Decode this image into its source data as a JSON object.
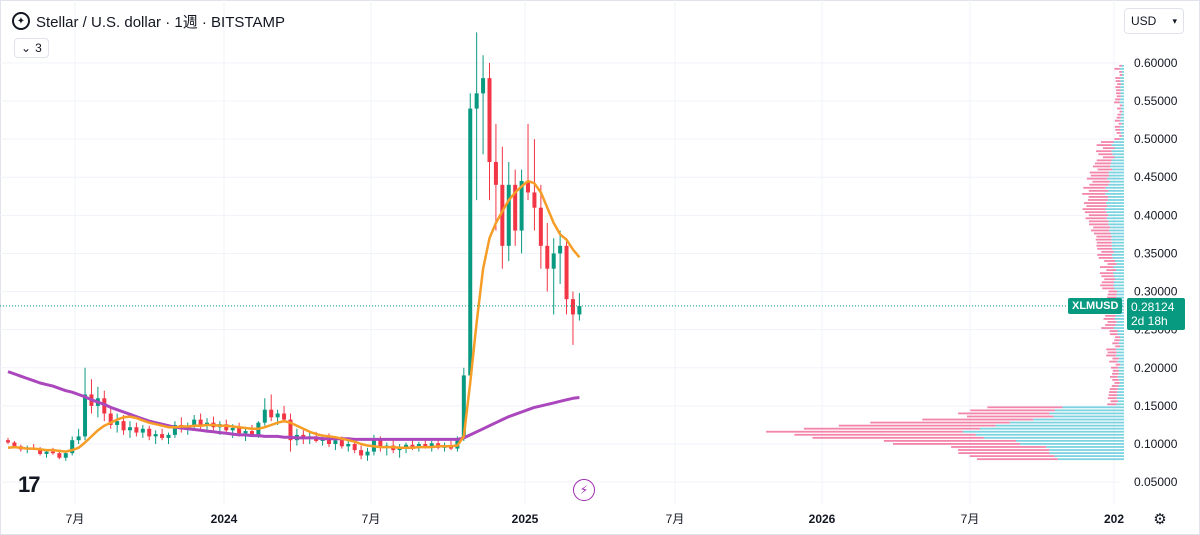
{
  "header": {
    "title": "Stellar / U.S. dollar · 1週 · BITSTAMP",
    "collapse_count": "3"
  },
  "currency": "USD",
  "price_tag": {
    "symbol": "XLMUSD",
    "price": "0.28124",
    "countdown": "2d 18h"
  },
  "colors": {
    "up": "#089981",
    "down": "#f23645",
    "ma_fast": "#f59d26",
    "ma_slow": "#ab47bc",
    "volume_profile_up": "#5ac8d8",
    "volume_profile_down": "#ef5b8e"
  },
  "chart_data": {
    "type": "candlestick",
    "y_axis": {
      "min": 0.02,
      "max": 0.63,
      "ticks": [
        "0.60000",
        "0.55000",
        "0.50000",
        "0.45000",
        "0.40000",
        "0.35000",
        "0.30000",
        "0.25000",
        "0.20000",
        "0.15000",
        "0.10000",
        "0.05000"
      ]
    },
    "x_axis": {
      "labels": [
        "7月",
        "2024",
        "7月",
        "2025",
        "7月",
        "2026",
        "7月",
        "202"
      ]
    },
    "last_price": 0.28124,
    "candles": [
      [
        0.105,
        0.108,
        0.1,
        0.102
      ],
      [
        0.102,
        0.104,
        0.095,
        0.097
      ],
      [
        0.097,
        0.099,
        0.09,
        0.093
      ],
      [
        0.093,
        0.098,
        0.088,
        0.095
      ],
      [
        0.095,
        0.1,
        0.092,
        0.093
      ],
      [
        0.093,
        0.096,
        0.085,
        0.087
      ],
      [
        0.087,
        0.092,
        0.082,
        0.09
      ],
      [
        0.09,
        0.095,
        0.086,
        0.088
      ],
      [
        0.088,
        0.092,
        0.08,
        0.082
      ],
      [
        0.082,
        0.09,
        0.078,
        0.088
      ],
      [
        0.088,
        0.11,
        0.085,
        0.105
      ],
      [
        0.105,
        0.12,
        0.1,
        0.11
      ],
      [
        0.11,
        0.2,
        0.105,
        0.165
      ],
      [
        0.165,
        0.185,
        0.14,
        0.15
      ],
      [
        0.15,
        0.175,
        0.135,
        0.16
      ],
      [
        0.16,
        0.17,
        0.13,
        0.14
      ],
      [
        0.14,
        0.15,
        0.12,
        0.125
      ],
      [
        0.125,
        0.14,
        0.115,
        0.13
      ],
      [
        0.13,
        0.138,
        0.112,
        0.118
      ],
      [
        0.118,
        0.13,
        0.108,
        0.122
      ],
      [
        0.122,
        0.128,
        0.11,
        0.115
      ],
      [
        0.115,
        0.125,
        0.108,
        0.12
      ],
      [
        0.12,
        0.124,
        0.105,
        0.11
      ],
      [
        0.11,
        0.118,
        0.1,
        0.113
      ],
      [
        0.113,
        0.12,
        0.105,
        0.108
      ],
      [
        0.108,
        0.115,
        0.1,
        0.112
      ],
      [
        0.112,
        0.13,
        0.108,
        0.125
      ],
      [
        0.125,
        0.135,
        0.115,
        0.12
      ],
      [
        0.12,
        0.128,
        0.112,
        0.124
      ],
      [
        0.124,
        0.138,
        0.118,
        0.132
      ],
      [
        0.132,
        0.14,
        0.12,
        0.125
      ],
      [
        0.125,
        0.134,
        0.115,
        0.128
      ],
      [
        0.128,
        0.136,
        0.118,
        0.122
      ],
      [
        0.122,
        0.13,
        0.112,
        0.126
      ],
      [
        0.126,
        0.132,
        0.114,
        0.118
      ],
      [
        0.118,
        0.126,
        0.108,
        0.121
      ],
      [
        0.121,
        0.128,
        0.11,
        0.114
      ],
      [
        0.114,
        0.12,
        0.104,
        0.117
      ],
      [
        0.117,
        0.125,
        0.11,
        0.112
      ],
      [
        0.112,
        0.13,
        0.108,
        0.128
      ],
      [
        0.128,
        0.16,
        0.124,
        0.145
      ],
      [
        0.145,
        0.165,
        0.13,
        0.135
      ],
      [
        0.135,
        0.145,
        0.125,
        0.14
      ],
      [
        0.14,
        0.15,
        0.128,
        0.132
      ],
      [
        0.132,
        0.14,
        0.09,
        0.105
      ],
      [
        0.105,
        0.12,
        0.098,
        0.112
      ],
      [
        0.112,
        0.118,
        0.1,
        0.108
      ],
      [
        0.108,
        0.115,
        0.1,
        0.11
      ],
      [
        0.11,
        0.116,
        0.102,
        0.104
      ],
      [
        0.104,
        0.112,
        0.098,
        0.108
      ],
      [
        0.108,
        0.114,
        0.096,
        0.1
      ],
      [
        0.1,
        0.108,
        0.092,
        0.105
      ],
      [
        0.105,
        0.11,
        0.094,
        0.097
      ],
      [
        0.097,
        0.104,
        0.09,
        0.1
      ],
      [
        0.1,
        0.106,
        0.088,
        0.092
      ],
      [
        0.092,
        0.098,
        0.08,
        0.085
      ],
      [
        0.085,
        0.095,
        0.078,
        0.09
      ],
      [
        0.09,
        0.112,
        0.085,
        0.105
      ],
      [
        0.105,
        0.11,
        0.09,
        0.095
      ],
      [
        0.095,
        0.102,
        0.085,
        0.098
      ],
      [
        0.098,
        0.105,
        0.088,
        0.092
      ],
      [
        0.092,
        0.1,
        0.082,
        0.095
      ],
      [
        0.095,
        0.102,
        0.088,
        0.099
      ],
      [
        0.099,
        0.106,
        0.092,
        0.096
      ],
      [
        0.096,
        0.103,
        0.09,
        0.1
      ],
      [
        0.1,
        0.108,
        0.094,
        0.097
      ],
      [
        0.097,
        0.104,
        0.09,
        0.101
      ],
      [
        0.101,
        0.106,
        0.093,
        0.095
      ],
      [
        0.095,
        0.102,
        0.09,
        0.098
      ],
      [
        0.098,
        0.104,
        0.092,
        0.094
      ],
      [
        0.094,
        0.11,
        0.09,
        0.108
      ],
      [
        0.108,
        0.2,
        0.104,
        0.19
      ],
      [
        0.19,
        0.56,
        0.185,
        0.54
      ],
      [
        0.54,
        0.64,
        0.42,
        0.56
      ],
      [
        0.56,
        0.61,
        0.48,
        0.58
      ],
      [
        0.58,
        0.6,
        0.42,
        0.47
      ],
      [
        0.47,
        0.52,
        0.38,
        0.44
      ],
      [
        0.44,
        0.49,
        0.33,
        0.36
      ],
      [
        0.36,
        0.47,
        0.34,
        0.44
      ],
      [
        0.44,
        0.46,
        0.36,
        0.38
      ],
      [
        0.38,
        0.46,
        0.35,
        0.445
      ],
      [
        0.445,
        0.52,
        0.42,
        0.43
      ],
      [
        0.43,
        0.5,
        0.38,
        0.41
      ],
      [
        0.41,
        0.44,
        0.33,
        0.36
      ],
      [
        0.36,
        0.39,
        0.3,
        0.33
      ],
      [
        0.33,
        0.37,
        0.27,
        0.35
      ],
      [
        0.35,
        0.38,
        0.31,
        0.36
      ],
      [
        0.36,
        0.37,
        0.27,
        0.29
      ],
      [
        0.29,
        0.3,
        0.23,
        0.27
      ],
      [
        0.27,
        0.298,
        0.262,
        0.281
      ]
    ],
    "ma_fast": [
      0.095,
      0.096,
      0.095,
      0.094,
      0.094,
      0.093,
      0.092,
      0.092,
      0.091,
      0.09,
      0.092,
      0.095,
      0.102,
      0.11,
      0.118,
      0.124,
      0.128,
      0.132,
      0.135,
      0.136,
      0.134,
      0.131,
      0.128,
      0.126,
      0.124,
      0.122,
      0.122,
      0.123,
      0.123,
      0.124,
      0.124,
      0.125,
      0.125,
      0.124,
      0.124,
      0.123,
      0.122,
      0.121,
      0.12,
      0.12,
      0.122,
      0.125,
      0.128,
      0.13,
      0.128,
      0.124,
      0.12,
      0.116,
      0.113,
      0.111,
      0.11,
      0.109,
      0.107,
      0.105,
      0.103,
      0.1,
      0.098,
      0.097,
      0.096,
      0.096,
      0.096,
      0.095,
      0.095,
      0.095,
      0.096,
      0.096,
      0.096,
      0.097,
      0.097,
      0.097,
      0.098,
      0.11,
      0.18,
      0.26,
      0.33,
      0.37,
      0.39,
      0.405,
      0.42,
      0.43,
      0.438,
      0.445,
      0.442,
      0.43,
      0.41,
      0.39,
      0.375,
      0.368,
      0.355,
      0.345
    ],
    "ma_slow_start": [
      0.195,
      0.19,
      0.185,
      0.18,
      0.176,
      0.172,
      0.168,
      0.164,
      0.16,
      0.156,
      0.152,
      0.148,
      0.144,
      0.14
    ],
    "ma_slow": [
      0.195,
      0.192,
      0.189,
      0.186,
      0.183,
      0.18,
      0.178,
      0.176,
      0.173,
      0.17,
      0.168,
      0.165,
      0.162,
      0.158,
      0.155,
      0.152,
      0.148,
      0.145,
      0.142,
      0.139,
      0.136,
      0.133,
      0.13,
      0.128,
      0.126,
      0.124,
      0.122,
      0.121,
      0.12,
      0.119,
      0.118,
      0.117,
      0.116,
      0.115,
      0.114,
      0.113,
      0.112,
      0.112,
      0.111,
      0.111,
      0.11,
      0.11,
      0.11,
      0.109,
      0.109,
      0.108,
      0.108,
      0.108,
      0.108,
      0.107,
      0.107,
      0.107,
      0.107,
      0.107,
      0.106,
      0.106,
      0.106,
      0.106,
      0.106,
      0.106,
      0.106,
      0.106,
      0.106,
      0.106,
      0.106,
      0.106,
      0.106,
      0.106,
      0.106,
      0.106,
      0.106,
      0.108,
      0.112,
      0.116,
      0.12,
      0.124,
      0.128,
      0.132,
      0.136,
      0.139,
      0.142,
      0.145,
      0.148,
      0.15,
      0.152,
      0.154,
      0.156,
      0.158,
      0.16,
      0.161
    ]
  }
}
